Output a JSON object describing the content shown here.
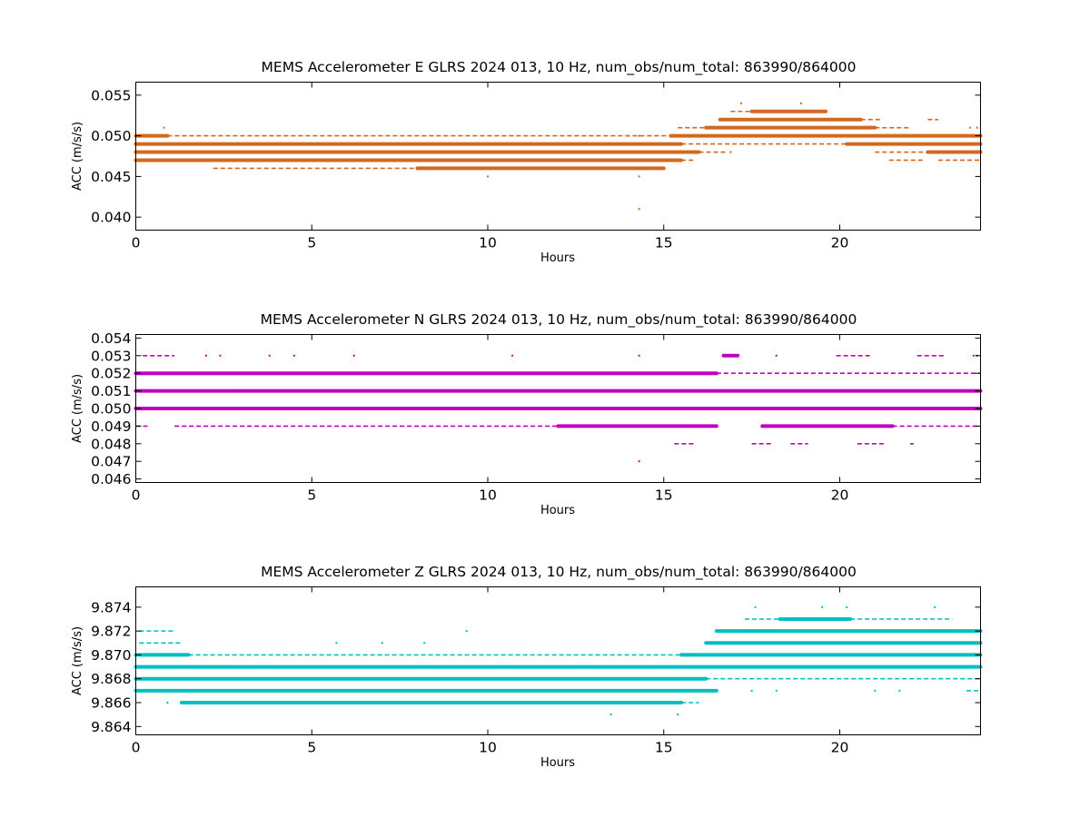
{
  "chart_data": [
    {
      "type": "scatter",
      "title": "MEMS Accelerometer E GLRS 2024 013, 10 Hz, num_obs/num_total: 863990/864000",
      "xlabel": "Hours",
      "ylabel": "ACC (m/s/s)",
      "xlim": [
        0,
        24
      ],
      "ylim": [
        0.0384,
        0.0566
      ],
      "xticks": [
        0,
        5,
        10,
        15,
        20
      ],
      "yticks": [
        0.04,
        0.045,
        0.05,
        0.055
      ],
      "ytick_labels": [
        "0.040",
        "0.045",
        "0.050",
        "0.055"
      ],
      "xtick_labels": [
        "0",
        "5",
        "10",
        "15",
        "20"
      ],
      "color": "#d2691e",
      "grid": false,
      "bands": [
        {
          "y": 0.05,
          "thick": [
            [
              0,
              0.9
            ],
            [
              15.2,
              24
            ]
          ],
          "thin": [
            [
              0.9,
              15.2
            ]
          ]
        },
        {
          "y": 0.049,
          "thick": [
            [
              0,
              15.5
            ],
            [
              20.2,
              24
            ]
          ],
          "thin": [
            [
              15.5,
              20.2
            ]
          ]
        },
        {
          "y": 0.048,
          "thick": [
            [
              0,
              16.0
            ],
            [
              22.5,
              24
            ]
          ],
          "thin": [
            [
              16.0,
              16.8
            ],
            [
              21.0,
              22.5
            ]
          ]
        },
        {
          "y": 0.047,
          "thick": [
            [
              0,
              15.5
            ]
          ],
          "thin": [
            [
              15.5,
              15.9
            ],
            [
              21.4,
              22.4
            ],
            [
              22.8,
              24
            ]
          ]
        },
        {
          "y": 0.046,
          "thick": [
            [
              8.0,
              15.0
            ]
          ],
          "thin": [
            [
              2.2,
              8.0
            ]
          ]
        },
        {
          "y": 0.051,
          "thick": [
            [
              16.2,
              21.0
            ]
          ],
          "thin": [
            [
              15.4,
              16.2
            ],
            [
              21.0,
              22.0
            ]
          ]
        },
        {
          "y": 0.052,
          "thick": [
            [
              16.6,
              20.6
            ]
          ],
          "thin": [
            [
              20.6,
              21.2
            ],
            [
              22.5,
              22.8
            ]
          ]
        },
        {
          "y": 0.053,
          "thick": [
            [
              17.5,
              19.6
            ]
          ],
          "thin": [
            [
              16.9,
              17.5
            ]
          ]
        }
      ],
      "dots": [
        [
          0.8,
          0.051
        ],
        [
          10.0,
          0.045
        ],
        [
          14.3,
          0.045
        ],
        [
          14.3,
          0.041
        ],
        [
          18.9,
          0.054
        ],
        [
          17.2,
          0.054
        ],
        [
          16.9,
          0.048
        ],
        [
          14.0,
          0.05
        ],
        [
          14.3,
          0.05
        ],
        [
          23.7,
          0.051
        ],
        [
          23.9,
          0.051
        ]
      ]
    },
    {
      "type": "scatter",
      "title": "MEMS Accelerometer N GLRS 2024 013, 10 Hz, num_obs/num_total: 863990/864000",
      "xlabel": "Hours",
      "ylabel": "ACC (m/s/s)",
      "xlim": [
        0,
        24
      ],
      "ylim": [
        0.0458,
        0.0542
      ],
      "xticks": [
        0,
        5,
        10,
        15,
        20
      ],
      "yticks": [
        0.046,
        0.047,
        0.048,
        0.049,
        0.05,
        0.051,
        0.052,
        0.053,
        0.054
      ],
      "ytick_labels": [
        "0.046",
        "0.047",
        "0.048",
        "0.049",
        "0.050",
        "0.051",
        "0.052",
        "0.053",
        "0.054"
      ],
      "xtick_labels": [
        "0",
        "5",
        "10",
        "15",
        "20"
      ],
      "color": "#bf00bf",
      "grid": false,
      "bands": [
        {
          "y": 0.052,
          "thick": [
            [
              0,
              16.5
            ]
          ],
          "thin": [
            [
              16.5,
              24
            ]
          ]
        },
        {
          "y": 0.051,
          "thick": [
            [
              0,
              24
            ]
          ],
          "thin": []
        },
        {
          "y": 0.05,
          "thick": [
            [
              0,
              24
            ]
          ],
          "thin": []
        },
        {
          "y": 0.049,
          "thick": [
            [
              12.0,
              16.5
            ],
            [
              17.8,
              21.5
            ]
          ],
          "thin": [
            [
              0,
              0.4
            ],
            [
              1.1,
              12.0
            ],
            [
              21.5,
              24
            ]
          ]
        },
        {
          "y": 0.053,
          "thick": [
            [
              16.7,
              17.1
            ]
          ],
          "thin": [
            [
              0.2,
              1.1
            ],
            [
              19.9,
              20.9
            ],
            [
              22.2,
              23.0
            ]
          ]
        },
        {
          "y": 0.048,
          "thick": [],
          "thin": [
            [
              15.3,
              15.9
            ],
            [
              17.5,
              18.1
            ],
            [
              18.6,
              19.1
            ],
            [
              20.5,
              21.3
            ],
            [
              22.0,
              22.1
            ]
          ]
        }
      ],
      "dots": [
        [
          14.3,
          0.047
        ],
        [
          2.0,
          0.053
        ],
        [
          2.4,
          0.053
        ],
        [
          3.8,
          0.053
        ],
        [
          4.5,
          0.053
        ],
        [
          6.2,
          0.053
        ],
        [
          10.7,
          0.053
        ],
        [
          14.3,
          0.053
        ],
        [
          18.2,
          0.053
        ],
        [
          23.8,
          0.053
        ],
        [
          23.9,
          0.053
        ]
      ]
    },
    {
      "type": "scatter",
      "title": "MEMS Accelerometer Z GLRS 2024 013, 10 Hz, num_obs/num_total: 863990/864000",
      "xlabel": "Hours",
      "ylabel": "ACC (m/s/s)",
      "xlim": [
        0,
        24
      ],
      "ylim": [
        9.8633,
        9.8757
      ],
      "xticks": [
        0,
        5,
        10,
        15,
        20
      ],
      "yticks": [
        9.864,
        9.866,
        9.868,
        9.87,
        9.872,
        9.874
      ],
      "ytick_labels": [
        "9.864",
        "9.866",
        "9.868",
        "9.870",
        "9.872",
        "9.874"
      ],
      "xtick_labels": [
        "0",
        "5",
        "10",
        "15",
        "20"
      ],
      "color": "#00bfbf",
      "grid": false,
      "bands": [
        {
          "y": 9.87,
          "thick": [
            [
              0,
              1.5
            ],
            [
              15.5,
              24
            ]
          ],
          "thin": [
            [
              1.5,
              15.5
            ]
          ]
        },
        {
          "y": 9.869,
          "thick": [
            [
              0,
              24
            ]
          ],
          "thin": []
        },
        {
          "y": 9.868,
          "thick": [
            [
              0,
              16.2
            ]
          ],
          "thin": [
            [
              16.2,
              24
            ]
          ]
        },
        {
          "y": 9.867,
          "thick": [
            [
              0,
              16.5
            ]
          ],
          "thin": [
            [
              23.6,
              24
            ]
          ]
        },
        {
          "y": 9.866,
          "thick": [
            [
              1.3,
              15.5
            ]
          ],
          "thin": [
            [
              15.5,
              16.0
            ]
          ]
        },
        {
          "y": 9.871,
          "thick": [
            [
              16.2,
              24
            ]
          ],
          "thin": [
            [
              0.1,
              1.3
            ]
          ]
        },
        {
          "y": 9.872,
          "thick": [
            [
              16.5,
              24
            ]
          ],
          "thin": [
            [
              0.1,
              1.1
            ]
          ]
        },
        {
          "y": 9.873,
          "thick": [
            [
              18.3,
              20.3
            ]
          ],
          "thin": [
            [
              17.3,
              18.3
            ],
            [
              20.3,
              23.2
            ]
          ]
        }
      ],
      "dots": [
        [
          0.9,
          9.866
        ],
        [
          13.5,
          9.865
        ],
        [
          15.4,
          9.865
        ],
        [
          9.4,
          9.872
        ],
        [
          5.7,
          9.871
        ],
        [
          7.0,
          9.871
        ],
        [
          8.2,
          9.871
        ],
        [
          17.6,
          9.874
        ],
        [
          19.5,
          9.874
        ],
        [
          20.2,
          9.874
        ],
        [
          22.7,
          9.874
        ],
        [
          17.5,
          9.867
        ],
        [
          18.2,
          9.867
        ],
        [
          21.0,
          9.867
        ],
        [
          21.7,
          9.867
        ]
      ]
    }
  ]
}
